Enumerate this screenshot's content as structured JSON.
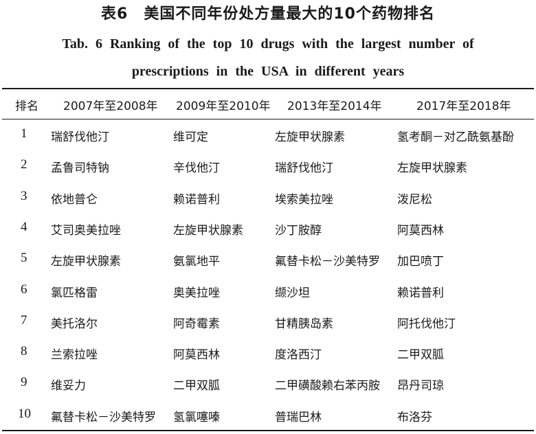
{
  "title_cn": "表6　美国不同年份处方量最大的10个药物排名",
  "title_en_line1": "Tab. 6   Ranking of the top 10 drugs with the largest number of",
  "title_en_line2": "prescriptions in the USA in different years",
  "headers": [
    "排名",
    "2007年至2008年",
    "2009年至2010年",
    "2013年至2014年",
    "2017年至2018年"
  ],
  "rows": [
    {
      "rank": "1",
      "c1": "瑞舒伐他汀",
      "c2": "维可定",
      "c3": "左旋甲状腺素",
      "c4": "氢考酮－对乙酰氨基酚"
    },
    {
      "rank": "2",
      "c1": "孟鲁司特钠",
      "c2": "辛伐他汀",
      "c3": "瑞舒伐他汀",
      "c4": "左旋甲状腺素"
    },
    {
      "rank": "3",
      "c1": "依地普仑",
      "c2": "赖诺普利",
      "c3": "埃索美拉唑",
      "c4": "泼尼松"
    },
    {
      "rank": "4",
      "c1": "艾司奥美拉唑",
      "c2": "左旋甲状腺素",
      "c3": "沙丁胺醇",
      "c4": "阿莫西林"
    },
    {
      "rank": "5",
      "c1": "左旋甲状腺素",
      "c2": "氨氯地平",
      "c3": "氟替卡松－沙美特罗",
      "c4": "加巴喷丁"
    },
    {
      "rank": "6",
      "c1": "氯匹格雷",
      "c2": "奥美拉唑",
      "c3": "缬沙坦",
      "c4": "赖诺普利"
    },
    {
      "rank": "7",
      "c1": "美托洛尔",
      "c2": "阿奇霉素",
      "c3": "甘精胰岛素",
      "c4": "阿托伐他汀"
    },
    {
      "rank": "8",
      "c1": "兰索拉唑",
      "c2": "阿莫西林",
      "c3": "度洛西汀",
      "c4": "二甲双胍"
    },
    {
      "rank": "9",
      "c1": "维妥力",
      "c2": "二甲双胍",
      "c3": "二甲磺酸赖右苯丙胺",
      "c4": "昂丹司琼"
    },
    {
      "rank": "10",
      "c1": "氟替卡松－沙美特罗",
      "c2": "氢氯噻嗪",
      "c3": "普瑞巴林",
      "c4": "布洛芬"
    }
  ]
}
